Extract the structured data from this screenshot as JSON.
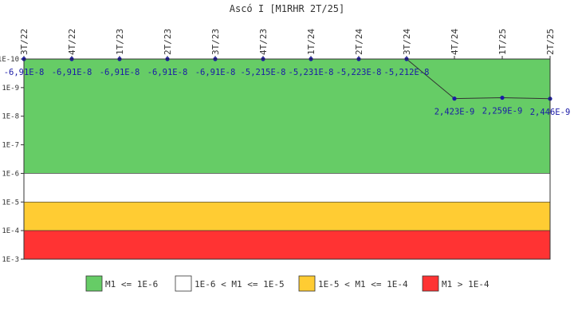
{
  "chart_data": {
    "type": "line",
    "title": "Ascó I [M1RHR 2T/25]",
    "x": [
      "3T/22",
      "4T/22",
      "1T/23",
      "2T/23",
      "3T/23",
      "4T/23",
      "1T/24",
      "2T/24",
      "3T/24",
      "4T/24",
      "1T/25",
      "2T/25"
    ],
    "series": [
      {
        "values": [
          -6.91e-08,
          -6.91e-08,
          -6.91e-08,
          -6.91e-08,
          -6.91e-08,
          -5.215e-08,
          -5.231e-08,
          -5.223e-08,
          -5.212e-08,
          2.423e-09,
          2.259e-09,
          2.446e-09
        ],
        "labels": [
          "-6,91E-8",
          "-6,91E-8",
          "-6,91E-8",
          "-6,91E-8",
          "-6,91E-8",
          "-5,215E-8",
          "-5,231E-8",
          "-5,223E-8",
          "-5,212E-8",
          "2,423E-9",
          "2,259E-9",
          "2,446E-9"
        ],
        "color": "#1a1aa6"
      }
    ],
    "y_scale": "log",
    "y_reversed": true,
    "ylim": [
      1e-10,
      0.001
    ],
    "y_ticks": [
      "1E-10",
      "1E-9",
      "1E-8",
      "1E-7",
      "1E-6",
      "1E-5",
      "1E-4",
      "1E-3"
    ],
    "bands": [
      {
        "from": 1e-10,
        "to": 1e-06,
        "color": "#66cc66",
        "label": "M1 <= 1E-6"
      },
      {
        "from": 1e-06,
        "to": 1e-05,
        "color": "#ffffff",
        "label": "1E-6 < M1 <= 1E-5"
      },
      {
        "from": 1e-05,
        "to": 0.0001,
        "color": "#ffcc33",
        "label": "1E-5 < M1 <= 1E-4"
      },
      {
        "from": 0.0001,
        "to": 0.001,
        "color": "#ff3333",
        "label": "M1 > 1E-4"
      }
    ],
    "legend_position": "bottom",
    "grid": false
  }
}
